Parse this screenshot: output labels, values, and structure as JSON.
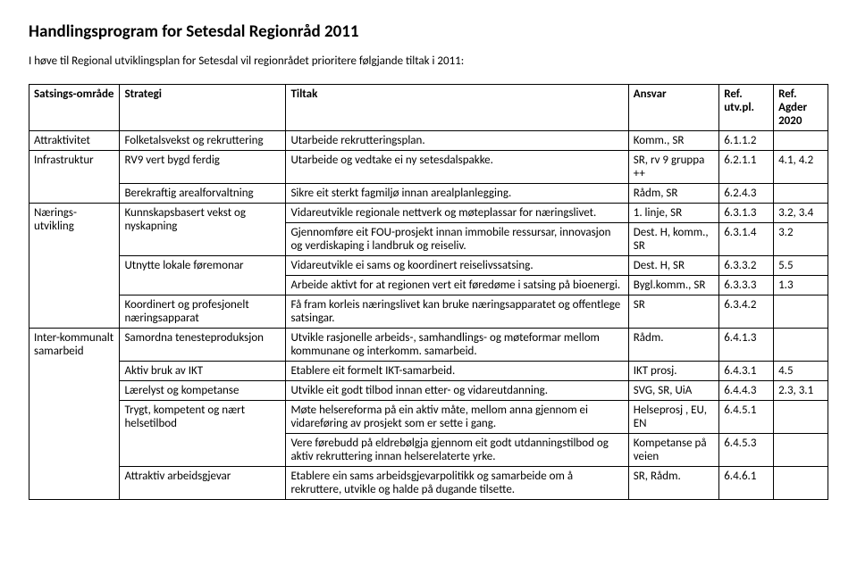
{
  "title": "Handlingsprogram for Setesdal Regionråd 2011",
  "intro": "I høve til Regional utviklingsplan for Setesdal vil regionrådet prioritere følgjande tiltak i 2011:",
  "headers": {
    "c1": "Satsings-område",
    "c2": "Strategi",
    "c3": "Tiltak",
    "c4": "Ansvar",
    "c5": "Ref. utv.pl.",
    "c6": "Ref. Agder 2020"
  },
  "areas": {
    "attraktivitet": "Attraktivitet",
    "infrastruktur": "Infrastruktur",
    "naering": "Nærings-utvikling",
    "interkomm": "Inter-kommunalt samarbeid"
  },
  "strategies": {
    "folketal": "Folketalsvekst og rekruttering",
    "rv9": "RV9 vert bygd ferdig",
    "berekraftig": "Berekraftig arealforvaltning",
    "kunnskap": "Kunnskapsbasert vekst og nyskapning",
    "utnytte": "Utnytte lokale føremonar",
    "koordinert": "Koordinert og profesjonelt næringsapparat",
    "samordna": "Samordna tenesteproduksjon",
    "ikt": "Aktiv bruk av IKT",
    "laerelyst": "Lærelyst og kompetanse",
    "trygt": "Trygt, kompetent og nært helsetilbod",
    "attraktiv": "Attraktiv arbeidsgjevar"
  },
  "rows": [
    {
      "tiltak": "Utarbeide rekrutteringsplan.",
      "ansvar": "Komm., SR",
      "ref1": "6.1.1.2",
      "ref2": ""
    },
    {
      "tiltak": "Utarbeide og vedtake ei ny setesdalspakke.",
      "ansvar": "SR, rv 9 gruppa ++",
      "ref1": "6.2.1.1",
      "ref2": "4.1, 4.2"
    },
    {
      "tiltak": "Sikre eit sterkt fagmiljø innan arealplanlegging.",
      "ansvar": "Rådm, SR",
      "ref1": "6.2.4.3",
      "ref2": ""
    },
    {
      "tiltak": "Vidareutvikle regionale nettverk og møteplassar for næringslivet.",
      "ansvar": "1. linje, SR",
      "ref1": "6.3.1.3",
      "ref2": "3.2, 3.4"
    },
    {
      "tiltak": "Gjennomføre eit FOU-prosjekt innan immobile ressursar, innovasjon og verdiskaping i landbruk og reiseliv.",
      "ansvar": "Dest. H, komm., SR",
      "ref1": "6.3.1.4",
      "ref2": "3.2"
    },
    {
      "tiltak": "Vidareutvikle ei sams og koordinert reiselivssatsing.",
      "ansvar": "Dest. H, SR",
      "ref1": "6.3.3.2",
      "ref2": "5.5"
    },
    {
      "tiltak": "Arbeide aktivt for at regionen vert eit føredøme i satsing på bioenergi.",
      "ansvar": "Bygl.komm., SR",
      "ref1": "6.3.3.3",
      "ref2": "1.3"
    },
    {
      "tiltak": "Få fram korleis næringslivet kan bruke næringsapparatet og offentlege satsingar.",
      "ansvar": "SR",
      "ref1": "6.3.4.2",
      "ref2": ""
    },
    {
      "tiltak": "Utvikle rasjonelle arbeids-, samhandlings- og møteformar mellom kommunane og interkomm. samarbeid.",
      "ansvar": "Rådm.",
      "ref1": "6.4.1.3",
      "ref2": ""
    },
    {
      "tiltak": "Etablere eit formelt IKT-samarbeid.",
      "ansvar": "IKT prosj.",
      "ref1": "6.4.3.1",
      "ref2": "4.5"
    },
    {
      "tiltak": "Utvikle eit godt tilbod innan etter- og vidareutdanning.",
      "ansvar": "SVG, SR, UiA",
      "ref1": "6.4.4.3",
      "ref2": "2.3, 3.1"
    },
    {
      "tiltak": "Møte helsereforma på ein aktiv måte, mellom anna gjennom ei vidareføring av prosjekt som er sette i gang.",
      "ansvar": "Helseprosj , EU, EN",
      "ref1": "6.4.5.1",
      "ref2": ""
    },
    {
      "tiltak": "Vere førebudd på eldrebølgja gjennom eit godt utdanningstilbod og aktiv rekruttering innan helserelaterte yrke.",
      "ansvar": "Kompetanse på veien",
      "ref1": "6.4.5.3",
      "ref2": ""
    },
    {
      "tiltak": "Etablere ein sams arbeidsgjevarpolitikk og samarbeide om å rekruttere, utvikle og halde på dugande tilsette.",
      "ansvar": "SR, Rådm.",
      "ref1": "6.4.6.1",
      "ref2": ""
    }
  ]
}
